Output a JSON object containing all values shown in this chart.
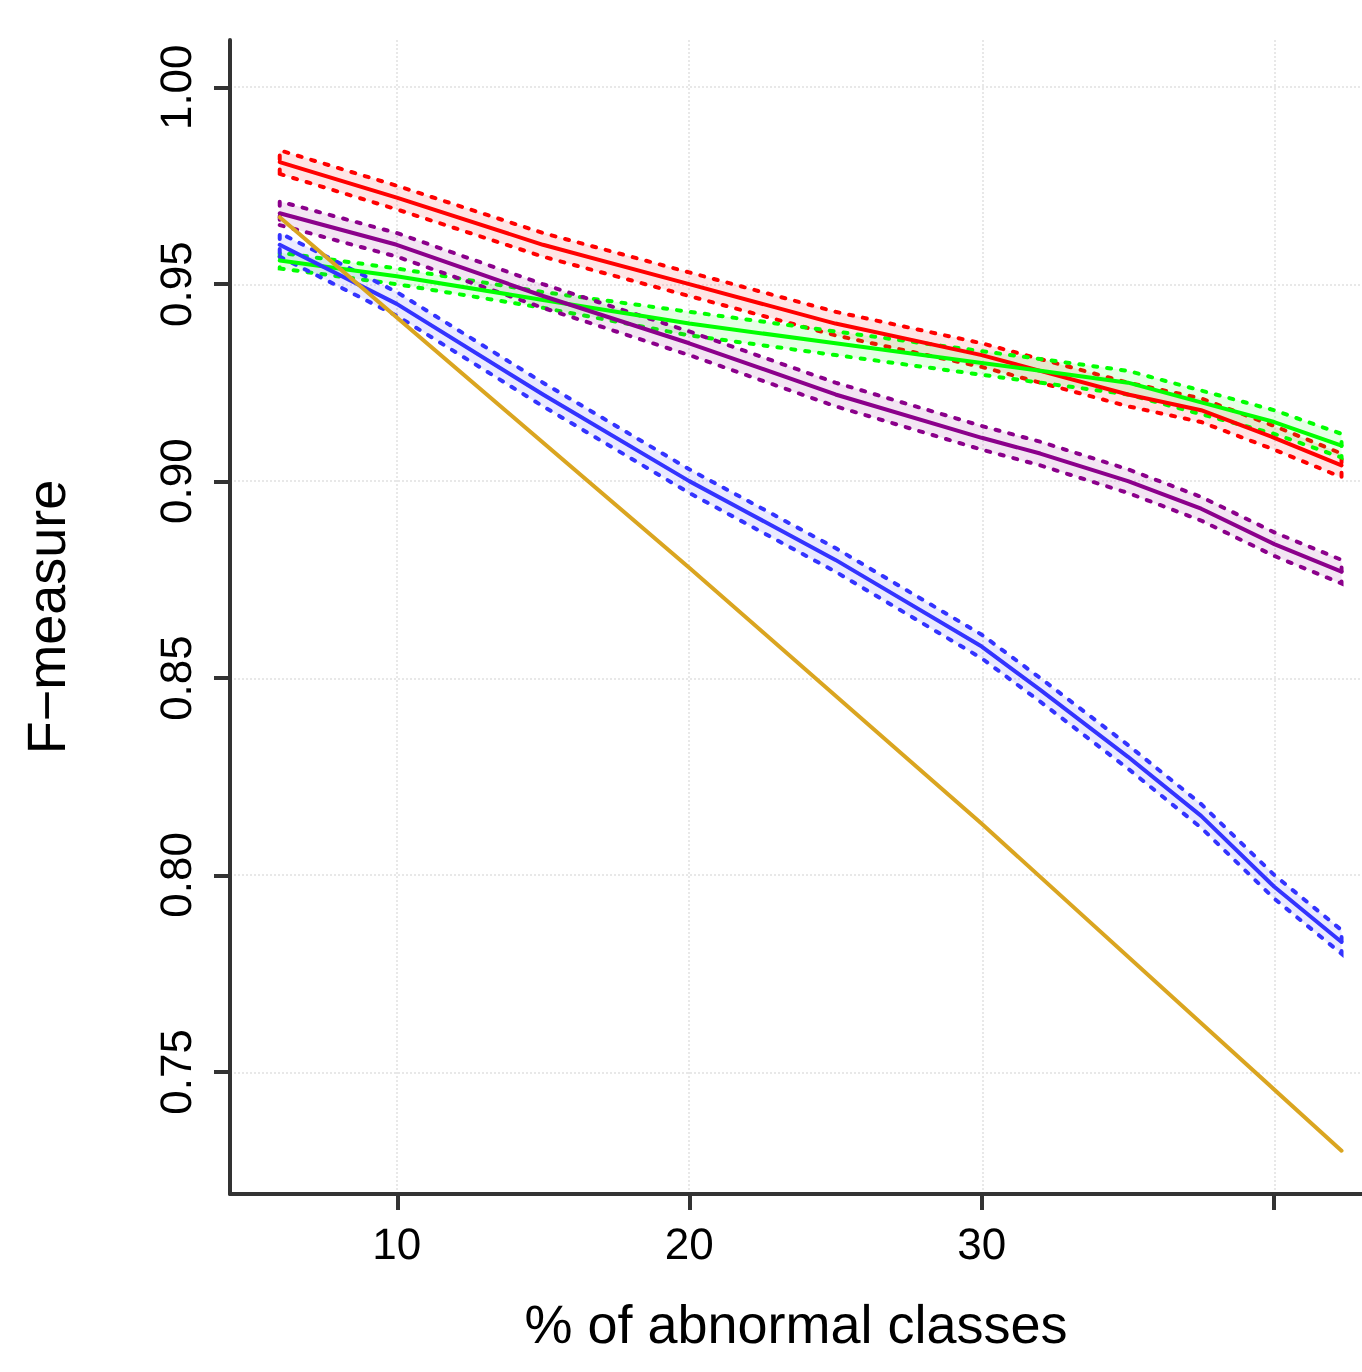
{
  "chart_data": {
    "type": "line",
    "xlabel": "% of abnormal classes",
    "ylabel": "F−measure",
    "x": [
      6,
      10,
      15,
      20,
      25,
      30,
      32,
      35,
      37.5,
      40,
      42.3
    ],
    "series": [
      {
        "color": "#ff0000",
        "values": [
          0.981,
          0.972,
          0.96,
          0.95,
          0.94,
          0.932,
          0.928,
          0.922,
          0.918,
          0.911,
          0.904
        ],
        "lower": [
          0.978,
          0.969,
          0.957,
          0.947,
          0.937,
          0.929,
          0.925,
          0.919,
          0.915,
          0.908,
          0.901
        ],
        "upper": [
          0.984,
          0.975,
          0.963,
          0.953,
          0.943,
          0.935,
          0.931,
          0.925,
          0.921,
          0.914,
          0.907
        ]
      },
      {
        "color": "#00ff00",
        "values": [
          0.956,
          0.952,
          0.946,
          0.94,
          0.935,
          0.93,
          0.928,
          0.925,
          0.92,
          0.915,
          0.909
        ],
        "lower": [
          0.954,
          0.95,
          0.944,
          0.937,
          0.932,
          0.927,
          0.925,
          0.922,
          0.917,
          0.912,
          0.906
        ],
        "upper": [
          0.958,
          0.954,
          0.948,
          0.943,
          0.938,
          0.933,
          0.931,
          0.928,
          0.923,
          0.918,
          0.912
        ]
      },
      {
        "color": "#8b008b",
        "values": [
          0.968,
          0.96,
          0.947,
          0.935,
          0.922,
          0.911,
          0.907,
          0.9,
          0.893,
          0.884,
          0.877
        ],
        "lower": [
          0.965,
          0.957,
          0.944,
          0.932,
          0.919,
          0.908,
          0.904,
          0.897,
          0.89,
          0.881,
          0.874
        ],
        "upper": [
          0.971,
          0.963,
          0.95,
          0.938,
          0.925,
          0.914,
          0.91,
          0.903,
          0.896,
          0.887,
          0.88
        ]
      },
      {
        "color": "#3333ff",
        "values": [
          0.96,
          0.945,
          0.922,
          0.9,
          0.88,
          0.858,
          0.847,
          0.83,
          0.815,
          0.797,
          0.783
        ],
        "lower": [
          0.957,
          0.942,
          0.919,
          0.897,
          0.877,
          0.855,
          0.844,
          0.827,
          0.812,
          0.794,
          0.78
        ],
        "upper": [
          0.963,
          0.948,
          0.925,
          0.903,
          0.883,
          0.861,
          0.85,
          0.833,
          0.818,
          0.8,
          0.786
        ]
      },
      {
        "color": "#daa520",
        "x": [
          6,
          20,
          30,
          42.3
        ],
        "values": [
          0.967,
          0.878,
          0.813,
          0.73
        ]
      }
    ],
    "xlim": [
      4.3,
      43
    ],
    "xticks": [
      10,
      20,
      30,
      {
        "value": 40,
        "label": null
      }
    ],
    "ylim": [
      0.719,
      1.012
    ],
    "yticks": [
      {
        "value": 0.75,
        "label": "0.75"
      },
      {
        "value": 0.8,
        "label": "0.80"
      },
      {
        "value": 0.85,
        "label": "0.85"
      },
      {
        "value": 0.9,
        "label": "0.90"
      },
      {
        "value": 0.95,
        "label": "0.95"
      },
      {
        "value": 1.0,
        "label": "1.00"
      }
    ],
    "grid": true,
    "marker": "none",
    "line_style": "solid"
  }
}
